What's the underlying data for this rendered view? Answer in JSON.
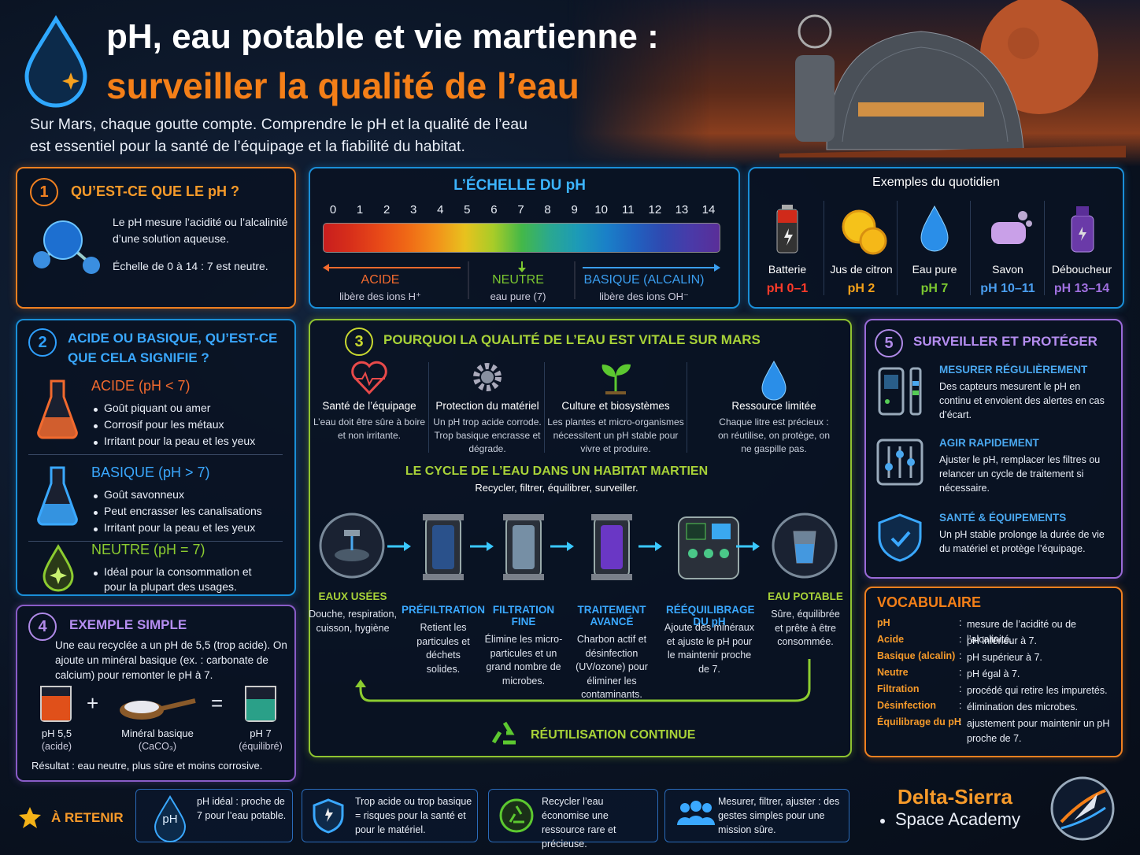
{
  "header": {
    "title_line1": "pH, eau potable et vie martienne :",
    "title_line2": "surveiller la qualité de l’eau",
    "intro_line1": "Sur Mars, chaque goutte compte. Comprendre le pH et la qualité de l’eau",
    "intro_line2": "est essentiel pour la santé de l’équipage et la fiabilité du habitat."
  },
  "section1": {
    "number": "1",
    "title": "QU’EST-CE QUE LE pH ?",
    "text1": "Le pH mesure l’acidité ou l’alcalinité d’une solution aqueuse.",
    "text2": "Échelle de 0 à 14 : 7 est neutre."
  },
  "ph_scale": {
    "title": "L’ÉCHELLE DU pH",
    "ticks": [
      0,
      1,
      2,
      3,
      4,
      5,
      6,
      7,
      8,
      9,
      10,
      11,
      12,
      13,
      14
    ],
    "zones": [
      {
        "label": "ACIDE",
        "desc": "libère des ions H⁺"
      },
      {
        "label": "NEUTRE",
        "desc": "eau pure (7)"
      },
      {
        "label": "BASIQUE (ALCALIN)",
        "desc": "libère des ions OH⁻"
      }
    ]
  },
  "examples": {
    "title": "Exemples du quotidien",
    "items": [
      {
        "name": "Batterie",
        "ph": "pH 0–1"
      },
      {
        "name": "Jus de citron",
        "ph": "pH 2"
      },
      {
        "name": "Eau pure",
        "ph": "pH 7"
      },
      {
        "name": "Savon",
        "ph": "pH 10–11"
      },
      {
        "name": "Déboucheur",
        "ph": "pH 13–14"
      }
    ]
  },
  "section2": {
    "number": "2",
    "title": "ACIDE OU BASIQUE, QU’EST-CE QUE CELA SIGNIFIE ?",
    "groups": [
      {
        "title": "ACIDE (pH < 7)",
        "items": [
          "Goût piquant ou amer",
          "Corrosif pour les métaux",
          "Irritant pour la peau et les yeux"
        ]
      },
      {
        "title": "BASIQUE (pH > 7)",
        "items": [
          "Goût savonneux",
          "Peut encrasser les canalisations",
          "Irritant pour la peau et les yeux"
        ]
      },
      {
        "title": "NEUTRE (pH = 7)",
        "items": [
          "Idéal pour la consommation et pour la plupart des usages."
        ]
      }
    ]
  },
  "section3": {
    "number": "3",
    "title": "POURQUOI LA QUALITÉ DE L’EAU EST VITALE SUR MARS",
    "reasons": [
      {
        "title": "Santé de l’équipage",
        "text": "L’eau doit être sûre à boire et non irritante."
      },
      {
        "title": "Protection du matériel",
        "text": "Un pH trop acide corrode. Trop basique encrasse et dégrade."
      },
      {
        "title": "Culture et biosystèmes",
        "text": "Les plantes et micro-organismes nécessitent un pH stable pour vivre et produire."
      },
      {
        "title": "Ressource limitée",
        "text": "Chaque litre est précieux : on réutilise, on protège, on ne gaspille pas."
      }
    ],
    "cycle_title": "LE CYCLE DE L’EAU DANS UN HABITAT MARTIEN",
    "cycle_subtitle": "Recycler, filtrer, équilibrer, surveiller.",
    "stages": [
      {
        "title": "EAUX USÉES",
        "text": "Douche, respiration, cuisson, hygiène"
      },
      {
        "title": "PRÉFILTRATION",
        "text": "Retient les particules et déchets solides."
      },
      {
        "title": "FILTRATION FINE",
        "text": "Élimine les micro-particules et un grand nombre de microbes."
      },
      {
        "title": "TRAITEMENT AVANCÉ",
        "text": "Charbon actif et désinfection (UV/ozone) pour éliminer les contaminants."
      },
      {
        "title": "RÉÉQUILIBRAGE DU pH",
        "text": "Ajoute des minéraux et ajuste le pH pour le maintenir proche de 7."
      },
      {
        "title": "EAU POTABLE",
        "text": "Sûre, équilibrée et prête à être consommée."
      }
    ],
    "loop_label": "RÉUTILISATION CONTINUE"
  },
  "section4": {
    "number": "4",
    "title": "EXEMPLE SIMPLE",
    "text": "Une eau recyclée a un pH de 5,5 (trop acide). On ajoute un minéral basique (ex. : carbonate de calcium) pour remonter le pH à 7.",
    "items": [
      {
        "label": "pH 5,5",
        "note": "(acide)"
      },
      {
        "label": "Minéral basique",
        "note": "(CaCO₃)"
      },
      {
        "label": "pH 7",
        "note": "(équilibré)"
      }
    ],
    "plus": "+",
    "equals": "=",
    "result": "Résultat : eau neutre, plus sûre et moins corrosive."
  },
  "section5": {
    "number": "5",
    "title": "SURVEILLER ET PROTÉGER",
    "items": [
      {
        "title": "MESURER RÉGULIÈREMENT",
        "text": "Des capteurs mesurent le pH en continu et envoient des alertes en cas d’écart."
      },
      {
        "title": "AGIR RAPIDEMENT",
        "text": "Ajuster le pH, remplacer les filtres ou relancer un cycle de traitement si nécessaire."
      },
      {
        "title": "SANTÉ & ÉQUIPEMENTS",
        "text": "Un pH stable prolonge la durée de vie du matériel et protège l’équipage."
      }
    ]
  },
  "vocabulary": {
    "title": "VOCABULAIRE",
    "separator": ":",
    "rows": [
      {
        "term": "pH",
        "definition": "mesure de l’acidité ou de l’alcalinité."
      },
      {
        "term": "Acide",
        "definition": "pH inférieur à 7."
      },
      {
        "term": "Basique (alcalin)",
        "definition": "pH supérieur à 7."
      },
      {
        "term": "Neutre",
        "definition": "pH égal à 7."
      },
      {
        "term": "Filtration",
        "definition": "procédé qui retire les impuretés."
      },
      {
        "term": "Désinfection",
        "definition": "élimination des microbes."
      },
      {
        "term": "Équilibrage du pH",
        "definition": "ajustement pour maintenir un pH proche de 7."
      }
    ]
  },
  "takeaways": {
    "label": "À RETENIR",
    "icon_text": "pH",
    "items": [
      "pH idéal : proche de 7 pour l’eau potable.",
      "Trop acide ou trop basique = risques pour la santé et pour le matériel.",
      "Recycler l’eau économise une ressource rare et précieuse.",
      "Mesurer, filtrer, ajuster : des gestes simples pour une mission sûre."
    ]
  },
  "brand": {
    "name": "Delta-Sierra",
    "subtitle": "Space Academy"
  }
}
